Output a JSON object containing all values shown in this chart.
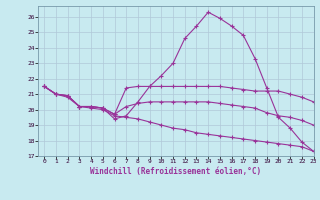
{
  "bg_color": "#c8eaf0",
  "line_color": "#993399",
  "grid_color": "#b0c8d8",
  "xlim": [
    -0.5,
    23
  ],
  "ylim": [
    17,
    26.7
  ],
  "yticks": [
    17,
    18,
    19,
    20,
    21,
    22,
    23,
    24,
    25,
    26
  ],
  "xticks": [
    0,
    1,
    2,
    3,
    4,
    5,
    6,
    7,
    8,
    9,
    10,
    11,
    12,
    13,
    14,
    15,
    16,
    17,
    18,
    19,
    20,
    21,
    22,
    23
  ],
  "xlabel": "Windchill (Refroidissement éolien,°C)",
  "lines": [
    {
      "x": [
        0,
        1,
        2,
        3,
        4,
        5,
        6,
        7,
        8,
        9,
        10,
        11,
        12,
        13,
        14,
        15,
        16,
        17,
        18,
        19,
        20,
        21,
        22,
        23
      ],
      "y": [
        21.5,
        21.0,
        20.9,
        20.2,
        20.2,
        20.1,
        19.4,
        19.6,
        20.5,
        21.5,
        22.2,
        23.0,
        24.6,
        25.4,
        26.3,
        25.9,
        25.4,
        24.8,
        23.3,
        21.4,
        19.5,
        18.8,
        17.9,
        17.3
      ]
    },
    {
      "x": [
        0,
        1,
        2,
        3,
        4,
        5,
        6,
        7,
        8,
        9,
        10,
        11,
        12,
        13,
        14,
        15,
        16,
        17,
        18,
        19,
        20,
        21,
        22,
        23
      ],
      "y": [
        21.5,
        21.0,
        20.9,
        20.2,
        20.2,
        20.1,
        19.7,
        21.4,
        21.5,
        21.5,
        21.5,
        21.5,
        21.5,
        21.5,
        21.5,
        21.5,
        21.4,
        21.3,
        21.2,
        21.2,
        21.2,
        21.0,
        20.8,
        20.5
      ]
    },
    {
      "x": [
        0,
        1,
        2,
        3,
        4,
        5,
        6,
        7,
        8,
        9,
        10,
        11,
        12,
        13,
        14,
        15,
        16,
        17,
        18,
        19,
        20,
        21,
        22,
        23
      ],
      "y": [
        21.5,
        21.0,
        20.9,
        20.2,
        20.2,
        20.1,
        19.7,
        20.2,
        20.4,
        20.5,
        20.5,
        20.5,
        20.5,
        20.5,
        20.5,
        20.4,
        20.3,
        20.2,
        20.1,
        19.8,
        19.6,
        19.5,
        19.3,
        19.0
      ]
    },
    {
      "x": [
        0,
        1,
        2,
        3,
        4,
        5,
        6,
        7,
        8,
        9,
        10,
        11,
        12,
        13,
        14,
        15,
        16,
        17,
        18,
        19,
        20,
        21,
        22,
        23
      ],
      "y": [
        21.5,
        21.0,
        20.8,
        20.2,
        20.1,
        20.0,
        19.6,
        19.5,
        19.4,
        19.2,
        19.0,
        18.8,
        18.7,
        18.5,
        18.4,
        18.3,
        18.2,
        18.1,
        18.0,
        17.9,
        17.8,
        17.7,
        17.6,
        17.3
      ]
    }
  ]
}
